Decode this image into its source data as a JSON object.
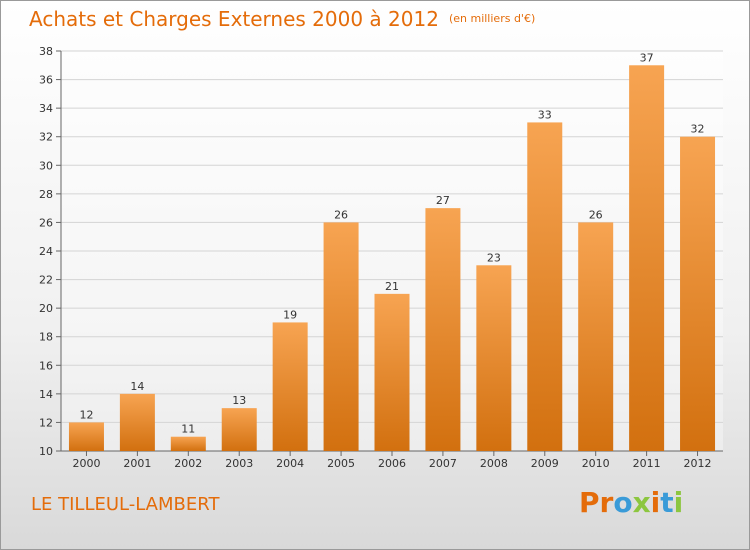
{
  "header": {
    "title": "Achats et Charges Externes 2000 à 2012",
    "unit": "(en milliers d'€)"
  },
  "footer": {
    "place": "LE TILLEUL-LAMBERT",
    "logo_text": "Proxiti"
  },
  "colors": {
    "accent": "#e46c0a",
    "bar_top": "#f7a452",
    "bar_bottom": "#d2700f",
    "logo_letters": [
      "#e46c0a",
      "#e46c0a",
      "#3a9bd8",
      "#8cc63f",
      "#e46c0a",
      "#3a9bd8",
      "#8cc63f"
    ]
  },
  "chart_data": {
    "type": "bar",
    "title": "Achats et Charges Externes 2000 à 2012",
    "subtitle": "(en milliers d'€)",
    "categories": [
      "2000",
      "2001",
      "2002",
      "2003",
      "2004",
      "2005",
      "2006",
      "2007",
      "2008",
      "2009",
      "2010",
      "2011",
      "2012"
    ],
    "values": [
      12,
      14,
      11,
      13,
      19,
      26,
      21,
      27,
      23,
      33,
      26,
      37,
      32
    ],
    "ylim": [
      10,
      38
    ],
    "yticks": [
      10,
      12,
      14,
      16,
      18,
      20,
      22,
      24,
      26,
      28,
      30,
      32,
      34,
      36,
      38
    ],
    "grid": true,
    "data_labels": true
  }
}
